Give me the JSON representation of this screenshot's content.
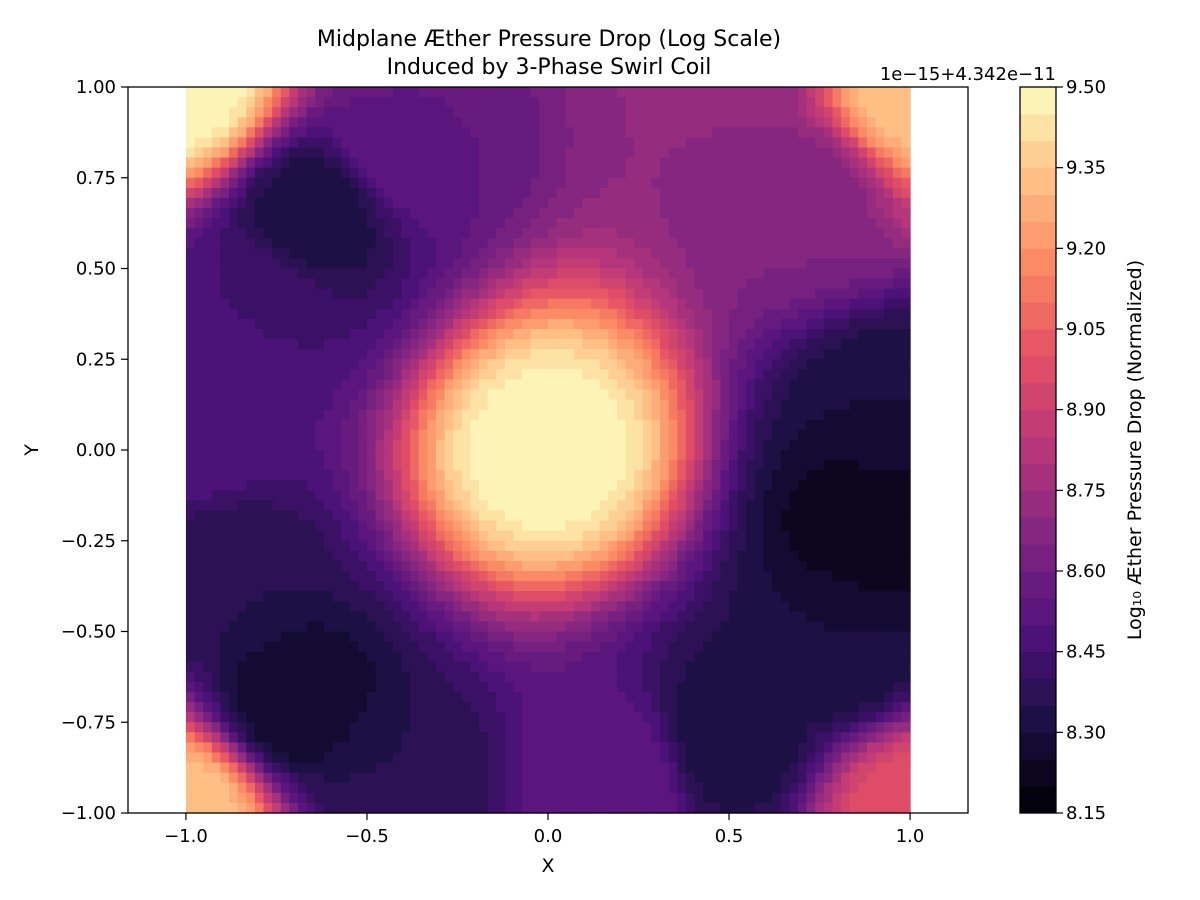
{
  "chart_data": {
    "type": "heatmap",
    "title_line1": "Midplane Æther Pressure Drop (Log Scale)",
    "title_line2": "Induced by 3-Phase Swirl Coil",
    "xlabel": "X",
    "ylabel": "Y",
    "xlim": [
      -1.16,
      1.16
    ],
    "ylim": [
      -1.0,
      1.0
    ],
    "x_ticks": [
      -1.0,
      -0.5,
      0.0,
      0.5,
      1.0
    ],
    "x_tick_labels": [
      "−1.0",
      "−0.5",
      "0.0",
      "0.5",
      "1.0"
    ],
    "y_ticks": [
      -1.0,
      -0.75,
      -0.5,
      -0.25,
      0.0,
      0.25,
      0.5,
      0.75,
      1.0
    ],
    "y_tick_labels": [
      "−1.00",
      "−0.75",
      "−0.50",
      "−0.25",
      "0.00",
      "0.25",
      "0.50",
      "0.75",
      "1.00"
    ],
    "grid": false,
    "colormap": "magma",
    "colorbar": {
      "label": "Log₁₀ Æther Pressure Drop (Normalized)",
      "offset_text": "1e−15+4.342e−11",
      "range": [
        8.15,
        9.5
      ],
      "ticks": [
        8.15,
        8.3,
        8.45,
        8.6,
        8.75,
        8.9,
        9.05,
        9.2,
        9.35,
        9.5
      ],
      "tick_labels": [
        "8.15",
        "8.30",
        "8.45",
        "8.60",
        "8.75",
        "8.90",
        "9.05",
        "9.20",
        "9.35",
        "9.50"
      ],
      "levels": 27
    },
    "grid_x": [
      -1.0,
      -0.9,
      -0.8,
      -0.7,
      -0.6,
      -0.5,
      -0.4,
      -0.3,
      -0.2,
      -0.1,
      0.0,
      0.1,
      0.2,
      0.3,
      0.4,
      0.5,
      0.6,
      0.7,
      0.8,
      0.9,
      1.0
    ],
    "grid_y": [
      -1.0,
      -0.9,
      -0.8,
      -0.7,
      -0.6,
      -0.5,
      -0.4,
      -0.3,
      -0.2,
      -0.1,
      0.0,
      0.1,
      0.2,
      0.3,
      0.4,
      0.5,
      0.6,
      0.7,
      0.8,
      0.9,
      1.0
    ],
    "features": [
      {
        "x": 0.0,
        "y": 0.0,
        "value": 9.5,
        "kind": "ridge-centre"
      },
      {
        "x": -1.0,
        "y": 1.0,
        "value": 9.5,
        "kind": "corner"
      },
      {
        "x": -1.0,
        "y": -1.0,
        "value": 9.35,
        "kind": "corner"
      },
      {
        "x": 0.5,
        "y": 1.0,
        "value": 8.7,
        "kind": "top-band"
      },
      {
        "x": 1.0,
        "y": 1.0,
        "value": 9.35,
        "kind": "corner"
      },
      {
        "x": -0.65,
        "y": 0.65,
        "value": 8.3,
        "kind": "minimum"
      },
      {
        "x": -0.8,
        "y": 0.4,
        "value": 8.45,
        "kind": "minimum"
      },
      {
        "x": -1.0,
        "y": 0.05,
        "value": 8.5,
        "kind": "minimum"
      },
      {
        "x": -0.9,
        "y": -0.35,
        "value": 8.35,
        "kind": "minimum"
      },
      {
        "x": -0.7,
        "y": -0.7,
        "value": 8.25,
        "kind": "minimum"
      },
      {
        "x": -0.42,
        "y": -0.92,
        "value": 8.35,
        "kind": "minimum"
      },
      {
        "x": 0.2,
        "y": -0.9,
        "value": 8.55,
        "kind": "minimum"
      },
      {
        "x": 0.5,
        "y": -0.8,
        "value": 8.3,
        "kind": "minimum"
      },
      {
        "x": 0.8,
        "y": -0.55,
        "value": 8.3,
        "kind": "minimum"
      },
      {
        "x": 0.9,
        "y": -0.2,
        "value": 8.2,
        "kind": "minimum"
      },
      {
        "x": 0.95,
        "y": 0.1,
        "value": 8.3,
        "kind": "minimum"
      },
      {
        "x": 0.7,
        "y": 0.7,
        "value": 8.65,
        "kind": "minimum"
      },
      {
        "x": -0.4,
        "y": 0.85,
        "value": 8.55,
        "kind": "minimum"
      },
      {
        "x": 1.0,
        "y": -1.0,
        "value": 9.0,
        "kind": "corner"
      }
    ]
  }
}
